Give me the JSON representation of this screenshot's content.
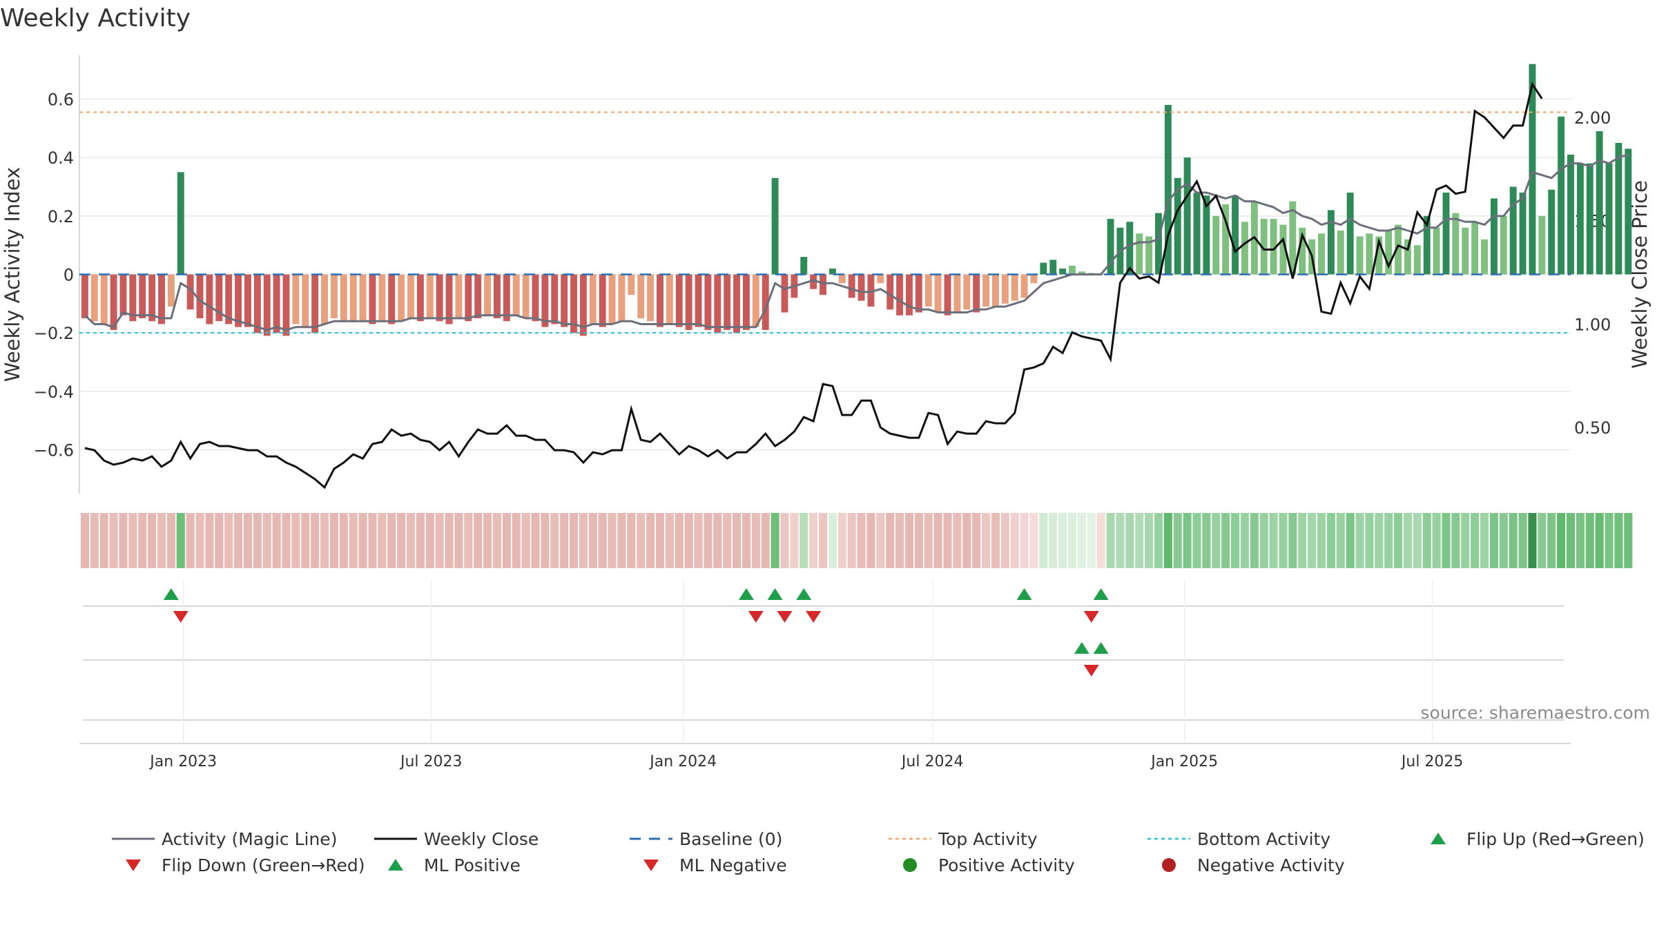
{
  "title": "Weekly Activity",
  "watermark": "source: sharemaestro.com",
  "colors": {
    "pos_strong": "#2e8b57",
    "pos_light": "#7fbf7f",
    "neg_strong": "#c95a5a",
    "neg_light": "#e8a07e",
    "magic_line": "#6b6f7a",
    "close_line": "#111111",
    "baseline": "#2b6cb0",
    "top": "#f4a261",
    "bottom": "#22c0d8",
    "flip_up": "#1e9e4a",
    "flip_down": "#d62828",
    "grid": "#e8e8e8"
  },
  "legend": [
    {
      "label": "Activity (Magic Line)",
      "key": "line-gray"
    },
    {
      "label": "Weekly Close",
      "key": "line-black"
    },
    {
      "label": "Baseline (0)",
      "key": "dash-blue"
    },
    {
      "label": "Top Activity",
      "key": "dot-orange"
    },
    {
      "label": "Bottom Activity",
      "key": "dot-cyan"
    },
    {
      "label": "Flip Up (Red→Green)",
      "key": "tri-up"
    },
    {
      "label": "Flip Down (Green→Red)",
      "key": "tri-down"
    },
    {
      "label": "ML Positive",
      "key": "tri-up"
    },
    {
      "label": "ML Negative",
      "key": "tri-down"
    },
    {
      "label": "Positive Activity",
      "key": "dot-green"
    },
    {
      "label": "Negative Activity",
      "key": "dot-red"
    }
  ],
  "chart_data": {
    "type": "bar",
    "ylabel": "Weekly Activity Index",
    "y2label": "Weekly Close Price",
    "ylim": [
      -0.75,
      0.75
    ],
    "y2lim": [
      0.18,
      2.3
    ],
    "yticks": [
      0.6,
      0.4,
      0.2,
      0,
      -0.2,
      -0.4,
      -0.6
    ],
    "ytick_labels": [
      "0.6",
      "0.4",
      "0.2",
      "0",
      "−0.2",
      "−0.4",
      "−0.6"
    ],
    "y2ticks": [
      2.0,
      1.5,
      1.0,
      0.5
    ],
    "y2tick_labels": [
      "2.00",
      "1.50",
      "1.00",
      "0.50"
    ],
    "xlim": [
      "2022-10-17",
      "2025-10-10"
    ],
    "xticks": [
      "2023-01-01",
      "2023-07-01",
      "2024-01-01",
      "2024-07-01",
      "2025-01-01",
      "2025-07-01"
    ],
    "xtick_labels": [
      "Jan 2023",
      "Jul 2023",
      "Jan 2024",
      "Jul 2024",
      "Jan 2025",
      "Jul 2025"
    ],
    "start_week": "2022-10-21",
    "top_activity": 0.555,
    "bottom_activity": -0.2,
    "baseline": 0,
    "grid": true,
    "legend_position": "bottom",
    "activity": [
      -0.15,
      -0.16,
      -0.17,
      -0.19,
      -0.14,
      -0.16,
      -0.15,
      -0.16,
      -0.17,
      -0.11,
      0.35,
      -0.12,
      -0.15,
      -0.17,
      -0.16,
      -0.17,
      -0.18,
      -0.18,
      -0.2,
      -0.21,
      -0.2,
      -0.21,
      -0.17,
      -0.18,
      -0.2,
      -0.17,
      -0.15,
      -0.16,
      -0.16,
      -0.16,
      -0.17,
      -0.16,
      -0.17,
      -0.16,
      -0.15,
      -0.16,
      -0.15,
      -0.16,
      -0.17,
      -0.15,
      -0.16,
      -0.15,
      -0.14,
      -0.15,
      -0.16,
      -0.14,
      -0.15,
      -0.16,
      -0.18,
      -0.17,
      -0.18,
      -0.2,
      -0.21,
      -0.17,
      -0.18,
      -0.17,
      -0.16,
      -0.07,
      -0.15,
      -0.16,
      -0.18,
      -0.17,
      -0.18,
      -0.19,
      -0.18,
      -0.19,
      -0.2,
      -0.19,
      -0.2,
      -0.19,
      -0.18,
      -0.19,
      0.33,
      -0.13,
      -0.08,
      0.06,
      -0.05,
      -0.07,
      0.02,
      -0.03,
      -0.08,
      -0.09,
      -0.11,
      -0.03,
      -0.12,
      -0.14,
      -0.14,
      -0.13,
      -0.11,
      -0.13,
      -0.14,
      -0.13,
      -0.12,
      -0.13,
      -0.11,
      -0.11,
      -0.1,
      -0.09,
      -0.08,
      -0.03,
      0.04,
      0.05,
      0.02,
      0.03,
      0.01,
      0.005,
      0.0,
      0.19,
      0.16,
      0.18,
      0.14,
      0.13,
      0.21,
      0.58,
      0.33,
      0.4,
      0.28,
      0.27,
      0.2,
      0.24,
      0.27,
      0.18,
      0.25,
      0.19,
      0.19,
      0.17,
      0.25,
      0.16,
      0.12,
      0.14,
      0.22,
      0.15,
      0.28,
      0.13,
      0.14,
      0.13,
      0.15,
      0.17,
      0.12,
      0.1,
      0.2,
      0.16,
      0.28,
      0.21,
      0.16,
      0.18,
      0.12,
      0.26,
      0.2,
      0.3,
      0.28,
      0.72,
      0.2,
      0.29,
      0.54,
      0.41,
      0.38,
      0.38,
      0.49,
      0.38,
      0.45,
      0.43
    ],
    "magic_line": [
      -0.14,
      -0.17,
      -0.17,
      -0.18,
      -0.13,
      -0.14,
      -0.14,
      -0.14,
      -0.15,
      -0.15,
      -0.03,
      -0.05,
      -0.09,
      -0.11,
      -0.13,
      -0.15,
      -0.16,
      -0.17,
      -0.18,
      -0.19,
      -0.18,
      -0.19,
      -0.18,
      -0.18,
      -0.18,
      -0.17,
      -0.16,
      -0.16,
      -0.16,
      -0.16,
      -0.16,
      -0.16,
      -0.16,
      -0.16,
      -0.15,
      -0.15,
      -0.15,
      -0.15,
      -0.15,
      -0.15,
      -0.15,
      -0.14,
      -0.14,
      -0.14,
      -0.14,
      -0.14,
      -0.15,
      -0.15,
      -0.16,
      -0.16,
      -0.17,
      -0.17,
      -0.18,
      -0.17,
      -0.17,
      -0.17,
      -0.16,
      -0.16,
      -0.17,
      -0.17,
      -0.17,
      -0.17,
      -0.17,
      -0.17,
      -0.17,
      -0.18,
      -0.18,
      -0.18,
      -0.18,
      -0.18,
      -0.18,
      -0.12,
      -0.03,
      -0.05,
      -0.04,
      -0.03,
      -0.02,
      -0.03,
      -0.03,
      -0.04,
      -0.05,
      -0.06,
      -0.06,
      -0.05,
      -0.07,
      -0.09,
      -0.11,
      -0.12,
      -0.12,
      -0.13,
      -0.13,
      -0.13,
      -0.13,
      -0.12,
      -0.12,
      -0.11,
      -0.11,
      -0.1,
      -0.09,
      -0.06,
      -0.03,
      -0.02,
      -0.01,
      0.0,
      0.0,
      0.0,
      0.0,
      0.04,
      0.08,
      0.1,
      0.11,
      0.11,
      0.12,
      0.25,
      0.29,
      0.31,
      0.28,
      0.28,
      0.27,
      0.26,
      0.27,
      0.25,
      0.25,
      0.24,
      0.23,
      0.21,
      0.22,
      0.2,
      0.19,
      0.17,
      0.18,
      0.17,
      0.19,
      0.17,
      0.16,
      0.15,
      0.15,
      0.16,
      0.15,
      0.14,
      0.16,
      0.16,
      0.19,
      0.19,
      0.18,
      0.18,
      0.17,
      0.2,
      0.2,
      0.24,
      0.26,
      0.35,
      0.34,
      0.33,
      0.36,
      0.38,
      0.38,
      0.37,
      0.39,
      0.38,
      0.4,
      0.41
    ],
    "close": [
      0.4,
      0.39,
      0.34,
      0.32,
      0.33,
      0.35,
      0.34,
      0.36,
      0.31,
      0.34,
      0.43,
      0.35,
      0.42,
      0.43,
      0.41,
      0.41,
      0.4,
      0.39,
      0.39,
      0.36,
      0.36,
      0.33,
      0.31,
      0.28,
      0.25,
      0.21,
      0.3,
      0.33,
      0.37,
      0.35,
      0.42,
      0.43,
      0.49,
      0.46,
      0.47,
      0.44,
      0.43,
      0.39,
      0.43,
      0.36,
      0.43,
      0.49,
      0.47,
      0.47,
      0.51,
      0.46,
      0.46,
      0.44,
      0.44,
      0.39,
      0.39,
      0.38,
      0.33,
      0.38,
      0.37,
      0.39,
      0.39,
      0.59,
      0.44,
      0.43,
      0.47,
      0.42,
      0.37,
      0.41,
      0.39,
      0.36,
      0.39,
      0.35,
      0.38,
      0.38,
      0.42,
      0.47,
      0.41,
      0.44,
      0.48,
      0.55,
      0.53,
      0.71,
      0.7,
      0.56,
      0.56,
      0.63,
      0.63,
      0.5,
      0.47,
      0.46,
      0.45,
      0.45,
      0.57,
      0.56,
      0.42,
      0.48,
      0.47,
      0.47,
      0.53,
      0.52,
      0.52,
      0.57,
      0.78,
      0.79,
      0.81,
      0.89,
      0.86,
      0.96,
      0.94,
      0.93,
      0.92,
      0.83,
      1.2,
      1.27,
      1.22,
      1.23,
      1.2,
      1.43,
      1.55,
      1.62,
      1.69,
      1.57,
      1.62,
      1.5,
      1.35,
      1.39,
      1.42,
      1.36,
      1.36,
      1.41,
      1.22,
      1.43,
      1.33,
      1.06,
      1.05,
      1.2,
      1.1,
      1.23,
      1.17,
      1.4,
      1.28,
      1.38,
      1.36,
      1.54,
      1.48,
      1.65,
      1.67,
      1.63,
      1.64,
      2.03,
      2.0,
      1.95,
      1.9,
      1.96,
      1.96,
      2.16,
      2.09
    ],
    "heat_colors": [
      "#e6b8b4",
      "#e8bdb8",
      "#e6b8b4",
      "#e8bdb8",
      "#e6b8b4",
      "#e8bdb8",
      "#e6b8b4",
      "#e6b8b4",
      "#e8bdb8",
      "#e6b8b4",
      "#6fbf7a",
      "#e6b8b4",
      "#e8bdb8",
      "#e6b8b4",
      "#e6b8b4",
      "#e8bdb8",
      "#e6b8b4",
      "#e6b8b4",
      "#e6b8b4",
      "#e8bdb8",
      "#e6b8b4",
      "#e6b8b4",
      "#e8bdb8",
      "#e6b8b4",
      "#e6b8b4",
      "#e8bdb8",
      "#e6b8b4",
      "#e6b8b4",
      "#e8bdb8",
      "#e6b8b4",
      "#e6b8b4",
      "#e8bdb8",
      "#e6b8b4",
      "#e6b8b4",
      "#e8bdb8",
      "#e6b8b4",
      "#e6b8b4",
      "#e8bdb8",
      "#e6b8b4",
      "#e6b8b4",
      "#e8bdb8",
      "#e6b8b4",
      "#e6b8b4",
      "#e8bdb8",
      "#e6b8b4",
      "#e6b8b4",
      "#e8bdb8",
      "#e6b8b4",
      "#e6b8b4",
      "#e8bdb8",
      "#e6b8b4",
      "#e6b8b4",
      "#e8bdb8",
      "#e6b8b4",
      "#e6b8b4",
      "#e8bdb8",
      "#e6b8b4",
      "#e6b8b4",
      "#e8bdb8",
      "#e6b8b4",
      "#e6b8b4",
      "#e8bdb8",
      "#e6b8b4",
      "#e6b8b4",
      "#e8bdb8",
      "#e6b8b4",
      "#e6b8b4",
      "#e8bdb8",
      "#e6b8b4",
      "#e6b8b4",
      "#e8bdb8",
      "#e6b8b4",
      "#6fbf7a",
      "#ecc6c2",
      "#f0d0cc",
      "#b8dfbc",
      "#f0d0cc",
      "#ecc6c2",
      "#d9eedb",
      "#f0d0cc",
      "#ecc6c2",
      "#e8bdb8",
      "#e6b8b4",
      "#ecc6c2",
      "#e6b8b4",
      "#e8bdb8",
      "#e6b8b4",
      "#e6b8b4",
      "#e8bdb8",
      "#e6b8b4",
      "#e6b8b4",
      "#e8bdb8",
      "#e6b8b4",
      "#e6b8b4",
      "#ecc6c2",
      "#e8bdb8",
      "#ecc6c2",
      "#f0d0cc",
      "#f2d6d3",
      "#f4dcd9",
      "#d0ead3",
      "#d6ecd8",
      "#d9eedb",
      "#dbefdd",
      "#dff1e0",
      "#e2f2e3",
      "#f4dcd9",
      "#a9d8b0",
      "#b0dbb6",
      "#a9d8b0",
      "#b0dbb6",
      "#a9d8b0",
      "#98d1a1",
      "#5fb86c",
      "#88c993",
      "#7cc589",
      "#8dcd97",
      "#88c993",
      "#98d1a1",
      "#88c993",
      "#8dcd97",
      "#98d1a1",
      "#88c993",
      "#98d1a1",
      "#9dd3a5",
      "#98d1a1",
      "#88c993",
      "#9dd3a5",
      "#a4d6ab",
      "#9dd3a5",
      "#8dcd97",
      "#98d1a1",
      "#7cc589",
      "#9dd3a5",
      "#98d1a1",
      "#9dd3a5",
      "#98d1a1",
      "#8dcd97",
      "#a4d6ab",
      "#a9d8b0",
      "#8dcd97",
      "#98d1a1",
      "#7cc589",
      "#88c993",
      "#98d1a1",
      "#8dcd97",
      "#9dd3a5",
      "#7cc589",
      "#88c993",
      "#78c385",
      "#7cc589",
      "#3a8f4e",
      "#88c993",
      "#7cc589",
      "#5fb86c",
      "#6fbf7a",
      "#78c385",
      "#6fbf7a",
      "#66bb72",
      "#78c385",
      "#6fbf7a",
      "#6fbf7a"
    ],
    "flip_up": [
      "2022-12-23",
      "2024-02-16",
      "2024-03-08",
      "2024-03-29",
      "2024-09-06",
      "2024-11-01"
    ],
    "flip_down": [
      "2022-12-30",
      "2024-02-23",
      "2024-03-15",
      "2024-04-05",
      "2024-10-25"
    ],
    "ml_positive": [
      "2024-10-18",
      "2024-11-01"
    ],
    "ml_negative": [
      "2024-10-25"
    ]
  }
}
